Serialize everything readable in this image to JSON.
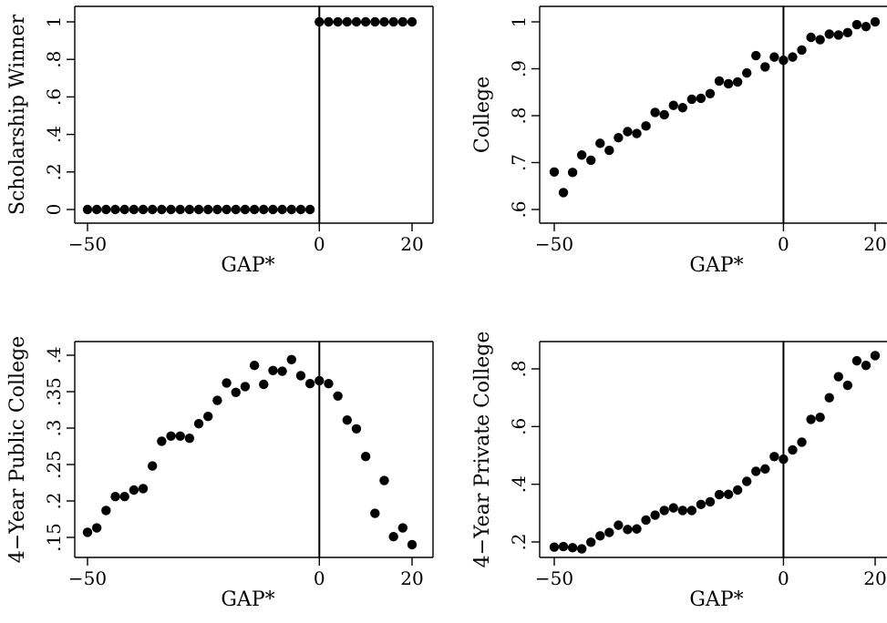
{
  "chart_data": [
    {
      "type": "scatter",
      "xlabel": "GAP*",
      "ylabel": "Scholarship Winner",
      "xlim": [
        -50,
        20
      ],
      "ylim": [
        0,
        1
      ],
      "xticks": [
        -50,
        0,
        20
      ],
      "xtick_labels": [
        "−50",
        "0",
        "20"
      ],
      "yticks": [
        0,
        0.2,
        0.4,
        0.6,
        0.8,
        1
      ],
      "ytick_labels": [
        "0",
        ".2",
        ".4",
        ".6",
        ".8",
        "1"
      ],
      "cutoff": 0,
      "points": [
        [
          -50,
          0
        ],
        [
          -48,
          0
        ],
        [
          -46,
          0
        ],
        [
          -44,
          0
        ],
        [
          -42,
          0
        ],
        [
          -40,
          0
        ],
        [
          -38,
          0
        ],
        [
          -36,
          0
        ],
        [
          -34,
          0
        ],
        [
          -32,
          0
        ],
        [
          -30,
          0
        ],
        [
          -28,
          0
        ],
        [
          -26,
          0
        ],
        [
          -24,
          0
        ],
        [
          -22,
          0
        ],
        [
          -20,
          0
        ],
        [
          -18,
          0
        ],
        [
          -16,
          0
        ],
        [
          -14,
          0
        ],
        [
          -12,
          0
        ],
        [
          -10,
          0
        ],
        [
          -8,
          0
        ],
        [
          -6,
          0
        ],
        [
          -4,
          0
        ],
        [
          -2,
          0
        ],
        [
          0,
          1
        ],
        [
          2,
          1
        ],
        [
          4,
          1
        ],
        [
          6,
          1
        ],
        [
          8,
          1
        ],
        [
          10,
          1
        ],
        [
          12,
          1
        ],
        [
          14,
          1
        ],
        [
          16,
          1
        ],
        [
          18,
          1
        ],
        [
          20,
          1
        ]
      ]
    },
    {
      "type": "scatter",
      "xlabel": "GAP*",
      "ylabel": "College",
      "xlim": [
        -50,
        20
      ],
      "ylim": [
        0.6,
        1
      ],
      "xticks": [
        -50,
        0,
        20
      ],
      "xtick_labels": [
        "−50",
        "0",
        "20"
      ],
      "yticks": [
        0.6,
        0.7,
        0.8,
        0.9,
        1
      ],
      "ytick_labels": [
        ".6",
        ".7",
        ".8",
        ".9",
        "1"
      ],
      "cutoff": 0,
      "points": [
        [
          -50,
          0.68
        ],
        [
          -48,
          0.636
        ],
        [
          -46,
          0.679
        ],
        [
          -44,
          0.716
        ],
        [
          -42,
          0.705
        ],
        [
          -40,
          0.741
        ],
        [
          -38,
          0.726
        ],
        [
          -36,
          0.753
        ],
        [
          -34,
          0.766
        ],
        [
          -32,
          0.762
        ],
        [
          -30,
          0.778
        ],
        [
          -28,
          0.807
        ],
        [
          -26,
          0.802
        ],
        [
          -24,
          0.822
        ],
        [
          -22,
          0.817
        ],
        [
          -20,
          0.835
        ],
        [
          -18,
          0.837
        ],
        [
          -16,
          0.847
        ],
        [
          -14,
          0.874
        ],
        [
          -12,
          0.868
        ],
        [
          -10,
          0.872
        ],
        [
          -8,
          0.891
        ],
        [
          -6,
          0.928
        ],
        [
          -4,
          0.904
        ],
        [
          -2,
          0.925
        ],
        [
          0,
          0.918
        ],
        [
          2,
          0.925
        ],
        [
          4,
          0.94
        ],
        [
          6,
          0.967
        ],
        [
          8,
          0.962
        ],
        [
          10,
          0.974
        ],
        [
          12,
          0.972
        ],
        [
          14,
          0.977
        ],
        [
          16,
          0.994
        ],
        [
          18,
          0.99
        ],
        [
          20,
          1.0
        ]
      ]
    },
    {
      "type": "scatter",
      "xlabel": "GAP*",
      "ylabel": "4−Year Public College",
      "xlim": [
        -50,
        20
      ],
      "ylim": [
        0.15,
        0.4
      ],
      "xticks": [
        -50,
        0,
        20
      ],
      "xtick_labels": [
        "−50",
        "0",
        "20"
      ],
      "yticks": [
        0.15,
        0.2,
        0.25,
        0.3,
        0.35,
        0.4
      ],
      "ytick_labels": [
        ".15",
        ".2",
        ".25",
        ".3",
        ".35",
        ".4"
      ],
      "cutoff": 0,
      "points": [
        [
          -50,
          0.157
        ],
        [
          -48,
          0.163
        ],
        [
          -46,
          0.187
        ],
        [
          -44,
          0.206
        ],
        [
          -42,
          0.206
        ],
        [
          -40,
          0.215
        ],
        [
          -38,
          0.217
        ],
        [
          -36,
          0.248
        ],
        [
          -34,
          0.282
        ],
        [
          -32,
          0.289
        ],
        [
          -30,
          0.289
        ],
        [
          -28,
          0.286
        ],
        [
          -26,
          0.306
        ],
        [
          -24,
          0.316
        ],
        [
          -22,
          0.338
        ],
        [
          -20,
          0.362
        ],
        [
          -18,
          0.349
        ],
        [
          -16,
          0.357
        ],
        [
          -14,
          0.386
        ],
        [
          -12,
          0.36
        ],
        [
          -10,
          0.379
        ],
        [
          -8,
          0.378
        ],
        [
          -6,
          0.394
        ],
        [
          -4,
          0.372
        ],
        [
          -2,
          0.361
        ],
        [
          0,
          0.365
        ],
        [
          2,
          0.361
        ],
        [
          4,
          0.344
        ],
        [
          6,
          0.311
        ],
        [
          8,
          0.299
        ],
        [
          10,
          0.261
        ],
        [
          12,
          0.183
        ],
        [
          14,
          0.228
        ],
        [
          16,
          0.151
        ],
        [
          18,
          0.163
        ],
        [
          20,
          0.14
        ]
      ]
    },
    {
      "type": "scatter",
      "xlabel": "GAP*",
      "ylabel": "4−Year Private College",
      "xlim": [
        -50,
        20
      ],
      "ylim": [
        0.2,
        0.8
      ],
      "xticks": [
        -50,
        0,
        20
      ],
      "xtick_labels": [
        "−50",
        "0",
        "20"
      ],
      "yticks": [
        0.2,
        0.4,
        0.6,
        0.8
      ],
      "ytick_labels": [
        ".2",
        ".4",
        ".6",
        ".8"
      ],
      "cutoff": 0,
      "points": [
        [
          -50,
          0.182
        ],
        [
          -48,
          0.184
        ],
        [
          -46,
          0.18
        ],
        [
          -44,
          0.176
        ],
        [
          -42,
          0.199
        ],
        [
          -40,
          0.221
        ],
        [
          -38,
          0.233
        ],
        [
          -36,
          0.258
        ],
        [
          -34,
          0.243
        ],
        [
          -32,
          0.245
        ],
        [
          -30,
          0.276
        ],
        [
          -28,
          0.293
        ],
        [
          -26,
          0.309
        ],
        [
          -24,
          0.318
        ],
        [
          -22,
          0.309
        ],
        [
          -20,
          0.309
        ],
        [
          -18,
          0.33
        ],
        [
          -16,
          0.339
        ],
        [
          -14,
          0.364
        ],
        [
          -12,
          0.365
        ],
        [
          -10,
          0.38
        ],
        [
          -8,
          0.41
        ],
        [
          -6,
          0.445
        ],
        [
          -4,
          0.453
        ],
        [
          -2,
          0.496
        ],
        [
          0,
          0.487
        ],
        [
          2,
          0.519
        ],
        [
          4,
          0.546
        ],
        [
          6,
          0.625
        ],
        [
          8,
          0.632
        ],
        [
          10,
          0.7
        ],
        [
          12,
          0.773
        ],
        [
          14,
          0.743
        ],
        [
          16,
          0.828
        ],
        [
          18,
          0.812
        ],
        [
          20,
          0.846
        ]
      ]
    }
  ]
}
